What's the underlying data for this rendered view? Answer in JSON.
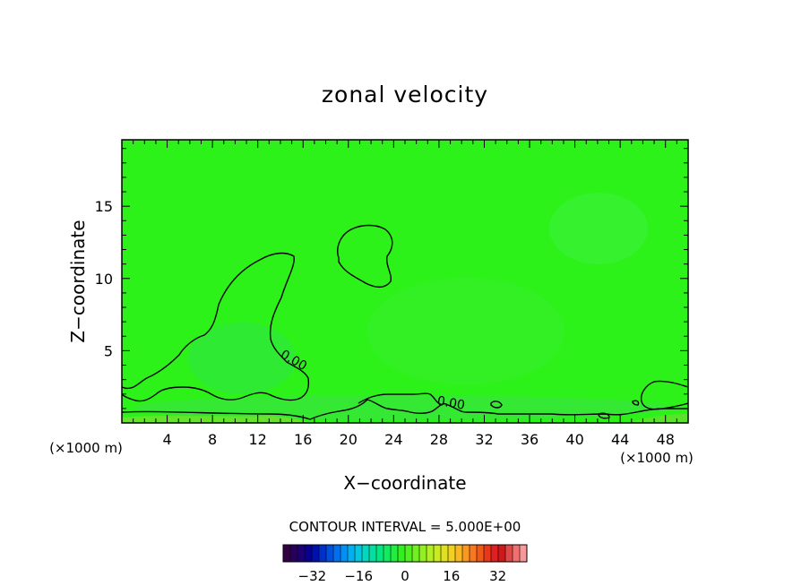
{
  "chart_data": {
    "type": "heatmap",
    "title": "zonal velocity",
    "xlabel": "X−coordinate",
    "ylabel": "Z−coordinate",
    "x_unit_left": "(×1000 m)",
    "x_unit_right": "(×1000 m)",
    "xlim": [
      0,
      50
    ],
    "ylim": [
      0,
      19.6
    ],
    "x_ticks": [
      4,
      8,
      12,
      16,
      20,
      24,
      28,
      32,
      36,
      40,
      44,
      48
    ],
    "x_tick_labels": [
      "4",
      "8",
      "12",
      "16",
      "20",
      "24",
      "28",
      "32",
      "36",
      "40",
      "44",
      "48"
    ],
    "y_ticks": [
      5,
      10,
      15
    ],
    "y_tick_labels": [
      "5",
      "10",
      "15"
    ],
    "contour_labels": [
      {
        "text": "0.00",
        "x": 15,
        "y": 4.1,
        "rotate": 30
      },
      {
        "text": "0.00",
        "x": 29,
        "y": 1.1,
        "rotate": 10
      }
    ],
    "field_color": "#2cf21a",
    "contour_interval_label": "CONTOUR INTERVAL = 5.000E+00",
    "colorbar": {
      "min": -42,
      "max": 42,
      "ticks": [
        -32,
        -16,
        0,
        16,
        32
      ],
      "tick_labels": [
        "−32",
        "−16",
        "0",
        "16",
        "32"
      ],
      "colors": [
        "#330044",
        "#28005c",
        "#1c0074",
        "#0a0090",
        "#0010b0",
        "#0030cc",
        "#0050e0",
        "#0070f0",
        "#0090f8",
        "#00b0f0",
        "#00c8e0",
        "#00d8c0",
        "#00e0a0",
        "#00e880",
        "#10ec60",
        "#20ee40",
        "#30f020",
        "#50f020",
        "#70f020",
        "#90f020",
        "#b0f020",
        "#c8ec20",
        "#e0e020",
        "#f0d020",
        "#f8b820",
        "#f89820",
        "#f87820",
        "#f05818",
        "#e83818",
        "#e02020",
        "#d01818",
        "#e04848",
        "#f07070",
        "#f89898"
      ]
    }
  }
}
